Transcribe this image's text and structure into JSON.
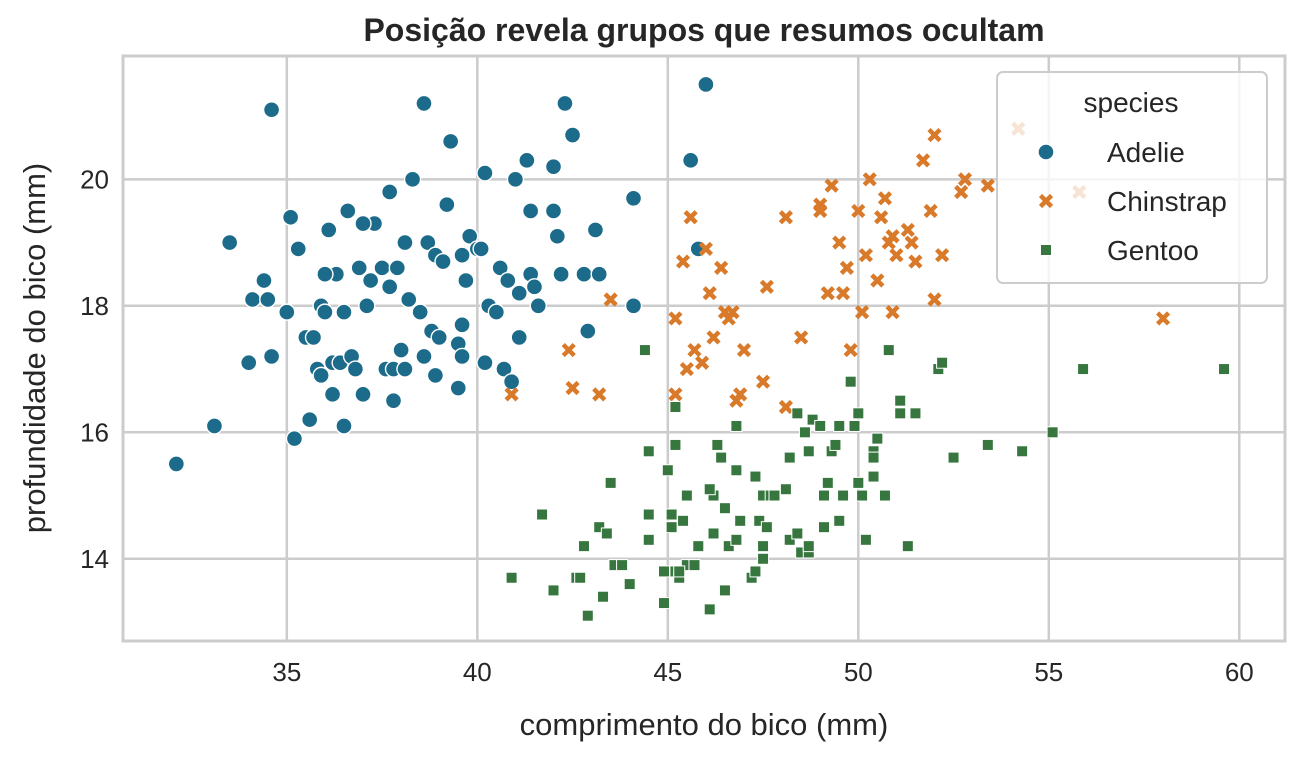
{
  "chart_data": {
    "type": "scatter",
    "title": "Posição revela grupos que resumos ocultam",
    "xlabel": "comprimento do bico (mm)",
    "ylabel": "profundidade do bico (mm)",
    "xlim": [
      30.7,
      61.2
    ],
    "ylim": [
      12.7,
      21.95
    ],
    "xticks": [
      35,
      40,
      45,
      50,
      55,
      60
    ],
    "yticks": [
      14,
      16,
      18,
      20
    ],
    "grid": true,
    "legend": {
      "title": "species",
      "position": "top-right"
    },
    "series": [
      {
        "name": "Adelie",
        "color": "#1c6b8a",
        "marker": "circle",
        "points": [
          [
            32.1,
            15.5
          ],
          [
            33.1,
            16.1
          ],
          [
            33.5,
            19.0
          ],
          [
            34.0,
            17.1
          ],
          [
            34.1,
            18.1
          ],
          [
            34.4,
            18.4
          ],
          [
            34.5,
            18.1
          ],
          [
            34.6,
            21.1
          ],
          [
            34.6,
            17.2
          ],
          [
            35.0,
            17.9
          ],
          [
            35.1,
            19.4
          ],
          [
            35.2,
            15.9
          ],
          [
            35.3,
            18.9
          ],
          [
            35.5,
            17.5
          ],
          [
            35.6,
            16.2
          ],
          [
            35.7,
            17.5
          ],
          [
            35.8,
            17.0
          ],
          [
            35.9,
            16.9
          ],
          [
            35.9,
            18.0
          ],
          [
            36.0,
            17.9
          ],
          [
            36.1,
            19.2
          ],
          [
            36.2,
            16.6
          ],
          [
            36.2,
            17.1
          ],
          [
            36.3,
            18.5
          ],
          [
            36.4,
            17.1
          ],
          [
            36.5,
            16.1
          ],
          [
            36.5,
            17.9
          ],
          [
            36.6,
            19.5
          ],
          [
            36.7,
            17.2
          ],
          [
            36.8,
            17.0
          ],
          [
            36.9,
            18.6
          ],
          [
            37.0,
            16.6
          ],
          [
            37.1,
            18.0
          ],
          [
            37.2,
            18.4
          ],
          [
            37.3,
            19.3
          ],
          [
            37.5,
            18.6
          ],
          [
            37.6,
            17.0
          ],
          [
            37.7,
            18.3
          ],
          [
            37.7,
            19.8
          ],
          [
            37.8,
            16.5
          ],
          [
            37.8,
            17.0
          ],
          [
            37.9,
            18.6
          ],
          [
            38.0,
            17.3
          ],
          [
            38.1,
            19.0
          ],
          [
            38.2,
            18.1
          ],
          [
            38.3,
            20.0
          ],
          [
            38.5,
            17.9
          ],
          [
            38.6,
            21.2
          ],
          [
            38.6,
            17.2
          ],
          [
            38.7,
            19.0
          ],
          [
            38.8,
            17.6
          ],
          [
            38.9,
            18.8
          ],
          [
            39.0,
            17.5
          ],
          [
            39.1,
            18.7
          ],
          [
            39.2,
            19.6
          ],
          [
            39.3,
            20.6
          ],
          [
            39.5,
            17.4
          ],
          [
            39.5,
            16.7
          ],
          [
            39.6,
            17.7
          ],
          [
            39.6,
            18.8
          ],
          [
            39.7,
            18.4
          ],
          [
            39.8,
            19.1
          ],
          [
            40.0,
            18.9
          ],
          [
            40.1,
            18.9
          ],
          [
            40.2,
            17.1
          ],
          [
            40.3,
            18.0
          ],
          [
            40.5,
            17.9
          ],
          [
            40.6,
            18.6
          ],
          [
            40.7,
            17.0
          ],
          [
            40.8,
            18.4
          ],
          [
            40.9,
            16.8
          ],
          [
            41.0,
            20.0
          ],
          [
            41.1,
            18.2
          ],
          [
            41.1,
            17.5
          ],
          [
            41.3,
            20.3
          ],
          [
            41.4,
            18.5
          ],
          [
            41.5,
            18.3
          ],
          [
            41.6,
            18.0
          ],
          [
            42.0,
            19.5
          ],
          [
            42.1,
            19.1
          ],
          [
            42.2,
            18.5
          ],
          [
            42.3,
            21.2
          ],
          [
            42.5,
            20.7
          ],
          [
            42.8,
            18.5
          ],
          [
            42.9,
            17.6
          ],
          [
            43.1,
            19.2
          ],
          [
            43.2,
            18.5
          ],
          [
            44.1,
            19.7
          ],
          [
            44.1,
            18.0
          ],
          [
            45.6,
            20.3
          ],
          [
            46.0,
            21.5
          ],
          [
            45.8,
            18.9
          ],
          [
            36.0,
            18.5
          ],
          [
            37.0,
            19.3
          ],
          [
            38.1,
            17.0
          ],
          [
            38.9,
            16.9
          ],
          [
            39.6,
            17.2
          ],
          [
            40.2,
            20.1
          ],
          [
            41.4,
            19.5
          ],
          [
            42.0,
            20.2
          ]
        ]
      },
      {
        "name": "Chinstrap",
        "color": "#d97a2a",
        "marker": "x",
        "points": [
          [
            40.9,
            16.6
          ],
          [
            42.4,
            17.3
          ],
          [
            42.5,
            16.7
          ],
          [
            43.2,
            16.6
          ],
          [
            43.5,
            18.1
          ],
          [
            45.2,
            17.8
          ],
          [
            45.2,
            16.6
          ],
          [
            45.4,
            18.7
          ],
          [
            45.5,
            17.0
          ],
          [
            45.6,
            19.4
          ],
          [
            45.7,
            17.3
          ],
          [
            46.0,
            18.9
          ],
          [
            46.1,
            18.2
          ],
          [
            46.2,
            17.5
          ],
          [
            46.4,
            18.6
          ],
          [
            46.6,
            17.8
          ],
          [
            46.7,
            17.9
          ],
          [
            46.8,
            16.5
          ],
          [
            46.9,
            16.6
          ],
          [
            47.0,
            17.3
          ],
          [
            47.5,
            16.8
          ],
          [
            47.6,
            18.3
          ],
          [
            48.1,
            16.4
          ],
          [
            48.5,
            17.5
          ],
          [
            49.0,
            19.5
          ],
          [
            49.2,
            18.2
          ],
          [
            49.3,
            19.9
          ],
          [
            49.5,
            19.0
          ],
          [
            49.6,
            18.2
          ],
          [
            49.7,
            18.6
          ],
          [
            49.8,
            17.3
          ],
          [
            50.0,
            19.5
          ],
          [
            50.1,
            17.9
          ],
          [
            50.2,
            18.8
          ],
          [
            50.3,
            20.0
          ],
          [
            50.5,
            18.4
          ],
          [
            50.6,
            19.4
          ],
          [
            50.7,
            19.7
          ],
          [
            50.8,
            19.0
          ],
          [
            50.9,
            17.9
          ],
          [
            51.0,
            18.8
          ],
          [
            51.3,
            19.2
          ],
          [
            51.4,
            19.0
          ],
          [
            51.5,
            18.7
          ],
          [
            51.7,
            20.3
          ],
          [
            52.0,
            18.1
          ],
          [
            52.0,
            20.7
          ],
          [
            52.2,
            18.8
          ],
          [
            52.7,
            19.8
          ],
          [
            52.8,
            20.0
          ],
          [
            53.4,
            19.9
          ],
          [
            54.2,
            20.8
          ],
          [
            55.8,
            19.8
          ],
          [
            58.0,
            17.8
          ],
          [
            46.5,
            17.9
          ],
          [
            49.0,
            19.6
          ],
          [
            50.9,
            19.1
          ],
          [
            51.9,
            19.5
          ],
          [
            48.1,
            19.4
          ],
          [
            45.9,
            17.1
          ]
        ]
      },
      {
        "name": "Gentoo",
        "color": "#37773f",
        "marker": "square",
        "points": [
          [
            40.9,
            13.7
          ],
          [
            41.7,
            14.7
          ],
          [
            42.0,
            13.5
          ],
          [
            42.6,
            13.7
          ],
          [
            42.7,
            13.7
          ],
          [
            42.8,
            14.2
          ],
          [
            42.9,
            13.1
          ],
          [
            43.2,
            14.5
          ],
          [
            43.3,
            13.4
          ],
          [
            43.4,
            14.4
          ],
          [
            43.5,
            15.2
          ],
          [
            43.6,
            13.9
          ],
          [
            43.8,
            13.9
          ],
          [
            44.0,
            13.6
          ],
          [
            44.4,
            17.3
          ],
          [
            44.5,
            14.3
          ],
          [
            44.5,
            15.7
          ],
          [
            44.9,
            13.3
          ],
          [
            44.9,
            13.8
          ],
          [
            45.0,
            15.4
          ],
          [
            45.1,
            14.5
          ],
          [
            45.2,
            13.8
          ],
          [
            45.2,
            16.4
          ],
          [
            45.2,
            15.8
          ],
          [
            45.3,
            13.7
          ],
          [
            45.4,
            14.6
          ],
          [
            45.5,
            13.9
          ],
          [
            45.5,
            15.0
          ],
          [
            45.7,
            13.9
          ],
          [
            45.8,
            14.2
          ],
          [
            46.1,
            13.2
          ],
          [
            46.2,
            14.4
          ],
          [
            46.2,
            15.0
          ],
          [
            46.3,
            15.8
          ],
          [
            46.4,
            15.6
          ],
          [
            46.5,
            13.5
          ],
          [
            46.5,
            14.8
          ],
          [
            46.6,
            14.2
          ],
          [
            46.8,
            14.3
          ],
          [
            46.8,
            15.4
          ],
          [
            46.8,
            16.1
          ],
          [
            47.2,
            13.7
          ],
          [
            47.3,
            15.3
          ],
          [
            47.4,
            14.6
          ],
          [
            47.5,
            14.2
          ],
          [
            47.5,
            15.0
          ],
          [
            47.6,
            14.5
          ],
          [
            47.7,
            15.0
          ],
          [
            47.8,
            15.0
          ],
          [
            48.1,
            15.1
          ],
          [
            48.2,
            14.3
          ],
          [
            48.2,
            15.6
          ],
          [
            48.4,
            14.4
          ],
          [
            48.5,
            14.1
          ],
          [
            48.6,
            16.0
          ],
          [
            48.7,
            14.1
          ],
          [
            48.7,
            15.7
          ],
          [
            48.8,
            16.2
          ],
          [
            49.0,
            16.1
          ],
          [
            49.1,
            14.5
          ],
          [
            49.1,
            15.0
          ],
          [
            49.2,
            15.2
          ],
          [
            49.3,
            15.7
          ],
          [
            49.4,
            15.8
          ],
          [
            49.5,
            16.1
          ],
          [
            49.6,
            15.0
          ],
          [
            49.8,
            16.8
          ],
          [
            50.0,
            15.2
          ],
          [
            50.0,
            16.3
          ],
          [
            50.1,
            15.0
          ],
          [
            50.2,
            14.3
          ],
          [
            50.4,
            15.3
          ],
          [
            50.4,
            15.7
          ],
          [
            50.5,
            15.9
          ],
          [
            50.7,
            15.0
          ],
          [
            50.8,
            17.3
          ],
          [
            51.1,
            16.3
          ],
          [
            51.1,
            16.5
          ],
          [
            51.3,
            14.2
          ],
          [
            51.5,
            16.3
          ],
          [
            52.1,
            17.0
          ],
          [
            52.2,
            17.1
          ],
          [
            52.5,
            15.6
          ],
          [
            53.4,
            15.8
          ],
          [
            54.3,
            15.7
          ],
          [
            55.1,
            16.0
          ],
          [
            55.9,
            17.0
          ],
          [
            59.6,
            17.0
          ],
          [
            47.3,
            13.8
          ],
          [
            48.4,
            16.3
          ],
          [
            49.9,
            16.1
          ],
          [
            46.9,
            14.6
          ],
          [
            45.1,
            14.7
          ],
          [
            44.5,
            14.7
          ],
          [
            47.5,
            14.0
          ],
          [
            48.7,
            14.2
          ],
          [
            46.1,
            15.1
          ],
          [
            50.4,
            15.6
          ],
          [
            45.3,
            13.8
          ],
          [
            49.5,
            14.6
          ]
        ]
      }
    ]
  }
}
